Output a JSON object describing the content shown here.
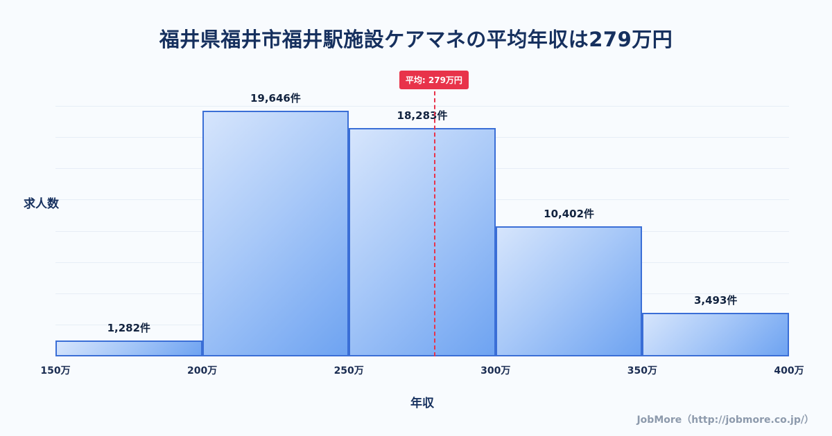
{
  "title": "福井県福井市福井駅施設ケアマネの平均年収は279万円",
  "chart_data": {
    "type": "bar",
    "categories": [
      "150万-200万",
      "200万-250万",
      "250万-300万",
      "300万-350万",
      "350万-400万"
    ],
    "values": [
      1282,
      19646,
      18283,
      10402,
      3493
    ],
    "bar_labels": [
      "1,282件",
      "19,646件",
      "18,283件",
      "10,402件",
      "3,493件"
    ],
    "x_ticks": [
      "150万",
      "200万",
      "250万",
      "300万",
      "350万",
      "400万"
    ],
    "x_range": [
      150,
      400
    ],
    "ylim": [
      0,
      20000
    ],
    "grid": true,
    "xlabel": "年収",
    "ylabel": "求人数",
    "average_value": 279,
    "average_label": "平均: 279万円",
    "colors": {
      "bar_fill_light": "#d6e5fc",
      "bar_fill_dark": "#6ea3f1",
      "bar_border": "#3a6ed6",
      "average_red": "#e8334a",
      "title_navy": "#16305e",
      "background": "#f8fbfe"
    }
  },
  "footer": "JobMore（http://jobmore.co.jp/）"
}
